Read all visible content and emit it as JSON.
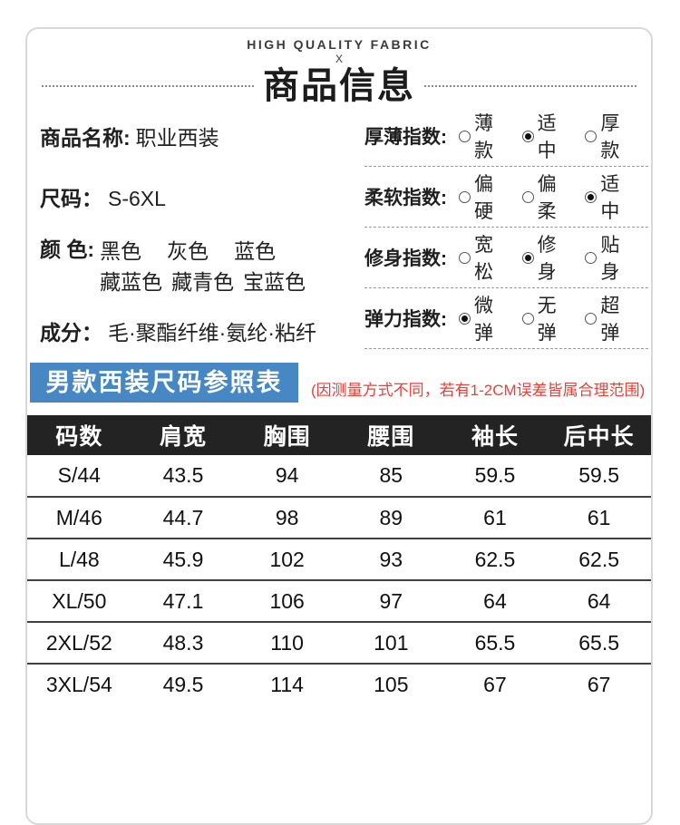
{
  "colors": {
    "banner_blue": "#4787c4",
    "note_red": "#e5403a",
    "table_header_bg": "#232323"
  },
  "header": {
    "tagline": "HIGH QUALITY FABRIC",
    "tagline_mark": "X",
    "title": "商品信息"
  },
  "product_info": {
    "name_label": "商品名称:",
    "name_value": "职业西装",
    "size_label": "尺码：",
    "size_value": "S-6XL",
    "color_label": "颜 色:",
    "color_line1": [
      "黑色",
      "灰色",
      "蓝色"
    ],
    "color_line2": [
      "藏蓝色",
      "藏青色",
      "宝蓝色"
    ],
    "material_label": "成分：",
    "material_value": "毛·聚酯纤维·氨纶·粘纤"
  },
  "indices": [
    {
      "label": "厚薄指数:",
      "options": [
        {
          "text": "薄款",
          "selected": false
        },
        {
          "text": "适中",
          "selected": true
        },
        {
          "text": "厚款",
          "selected": false
        }
      ]
    },
    {
      "label": "柔软指数:",
      "options": [
        {
          "text": "偏硬",
          "selected": false
        },
        {
          "text": "偏柔",
          "selected": false
        },
        {
          "text": "适中",
          "selected": true
        }
      ]
    },
    {
      "label": "修身指数:",
      "options": [
        {
          "text": "宽松",
          "selected": false
        },
        {
          "text": "修身",
          "selected": true
        },
        {
          "text": "贴身",
          "selected": false
        }
      ]
    },
    {
      "label": "弹力指数:",
      "options": [
        {
          "text": "微弹",
          "selected": true
        },
        {
          "text": "无弹",
          "selected": false
        },
        {
          "text": "超弹",
          "selected": false
        }
      ]
    }
  ],
  "size_chart": {
    "banner": "男款西装尺码参照表",
    "note": "(因测量方式不同，若有1-2CM误差皆属合理范围)",
    "columns": [
      "码数",
      "肩宽",
      "胸围",
      "腰围",
      "袖长",
      "后中长"
    ],
    "rows": [
      [
        "S/44",
        "43.5",
        "94",
        "85",
        "59.5",
        "59.5"
      ],
      [
        "M/46",
        "44.7",
        "98",
        "89",
        "61",
        "61"
      ],
      [
        "L/48",
        "45.9",
        "102",
        "93",
        "62.5",
        "62.5"
      ],
      [
        "XL/50",
        "47.1",
        "106",
        "97",
        "64",
        "64"
      ],
      [
        "2XL/52",
        "48.3",
        "110",
        "101",
        "65.5",
        "65.5"
      ],
      [
        "3XL/54",
        "49.5",
        "114",
        "105",
        "67",
        "67"
      ]
    ]
  }
}
